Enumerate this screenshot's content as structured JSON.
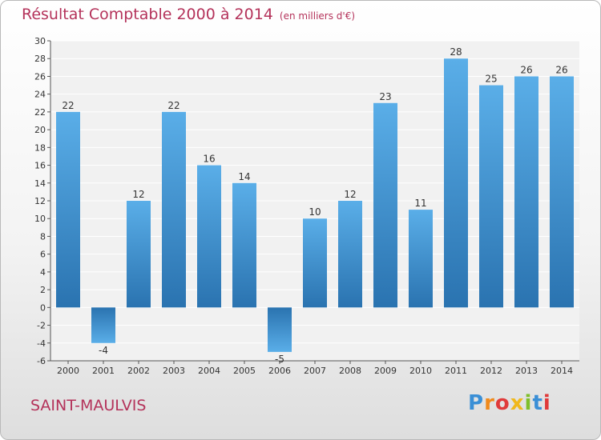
{
  "header": {
    "title": "Résultat Comptable 2000 à 2014",
    "unit": "(en milliers d'€)"
  },
  "footer": {
    "commune": "SAINT-MAULVIS",
    "logo_text": "Proxiti"
  },
  "colors": {
    "title": "#b4325a",
    "bar_light": "#5aaee8",
    "bar_dark": "#2a73b0",
    "grid": "#ffffff",
    "axis": "#555555"
  },
  "chart_data": {
    "type": "bar",
    "title": "Résultat Comptable 2000 à 2014",
    "ylabel": "(en milliers d'€)",
    "xlabel": "",
    "categories": [
      "2000",
      "2001",
      "2002",
      "2003",
      "2004",
      "2005",
      "2006",
      "2007",
      "2008",
      "2009",
      "2010",
      "2011",
      "2012",
      "2013",
      "2014"
    ],
    "values": [
      22,
      -4,
      12,
      22,
      16,
      14,
      -5,
      10,
      12,
      23,
      11,
      28,
      25,
      26,
      26
    ],
    "ylim": [
      -6,
      30
    ],
    "yticks": [
      -6,
      -4,
      -2,
      0,
      2,
      4,
      6,
      8,
      10,
      12,
      14,
      16,
      18,
      20,
      22,
      24,
      26,
      28,
      30
    ],
    "grid": true,
    "data_labels": true
  }
}
